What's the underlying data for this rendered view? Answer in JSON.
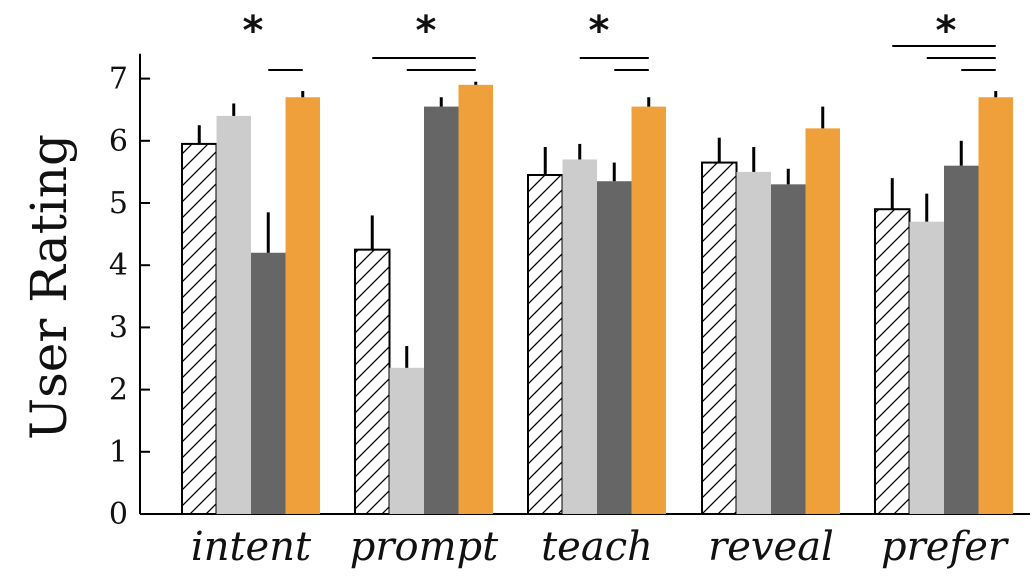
{
  "chart_data": {
    "type": "bar",
    "title": "",
    "xlabel": "",
    "ylabel": "User Rating",
    "ylim": [
      0,
      7.4
    ],
    "yticks": [
      "0",
      "1",
      "2",
      "3",
      "4",
      "5",
      "6",
      "7"
    ],
    "grid": false,
    "categories": [
      "intent",
      "prompt",
      "teach",
      "reveal",
      "prefer"
    ],
    "series": [
      {
        "values": [
          5.95,
          4.25,
          5.45,
          5.65,
          4.9
        ],
        "errors": [
          0.3,
          0.55,
          0.45,
          0.4,
          0.5
        ],
        "color": "#ffffff",
        "pattern": "hatch"
      },
      {
        "values": [
          6.4,
          2.35,
          5.7,
          5.5,
          4.7
        ],
        "errors": [
          0.2,
          0.35,
          0.25,
          0.4,
          0.45
        ],
        "color": "#cccccc"
      },
      {
        "values": [
          4.2,
          6.55,
          5.35,
          5.3,
          5.6
        ],
        "errors": [
          0.65,
          0.15,
          0.3,
          0.25,
          0.4
        ],
        "color": "#666666"
      },
      {
        "values": [
          6.7,
          6.9,
          6.55,
          6.2,
          6.7
        ],
        "errors": [
          0.1,
          0.05,
          0.15,
          0.35,
          0.1
        ],
        "color": "#f0a03a"
      }
    ],
    "significance": [
      {
        "category": 0,
        "star": "*",
        "lines": [
          [
            2,
            3
          ]
        ]
      },
      {
        "category": 1,
        "star": "*",
        "lines": [
          [
            0,
            3
          ],
          [
            1,
            3
          ]
        ]
      },
      {
        "category": 2,
        "star": "*",
        "lines": [
          [
            1,
            3
          ],
          [
            2,
            3
          ]
        ]
      },
      {
        "category": 4,
        "star": "*",
        "lines": [
          [
            0,
            3
          ],
          [
            1,
            3
          ],
          [
            2,
            3
          ]
        ]
      }
    ]
  }
}
